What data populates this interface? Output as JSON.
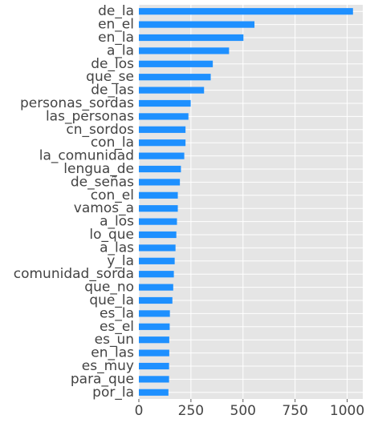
{
  "chart_data": {
    "type": "bar",
    "orientation": "horizontal",
    "categories": [
      "de_la",
      "en_el",
      "en_la",
      "a_la",
      "de_los",
      "que_se",
      "de_las",
      "personas_sordas",
      "las_personas",
      "cn_sordos",
      "con_la",
      "la_comunidad",
      "lengua_de",
      "de_señas",
      "con_el",
      "vamos_a",
      "a_los",
      "lo_que",
      "a_las",
      "y_la",
      "comunidad_sorda",
      "que_no",
      "que_la",
      "es_la",
      "es_el",
      "es_un",
      "en_las",
      "es_muy",
      "para_que",
      "por_la"
    ],
    "values": [
      1028,
      555,
      502,
      433,
      355,
      345,
      313,
      249,
      238,
      224,
      224,
      218,
      202,
      197,
      187,
      187,
      183,
      180,
      176,
      172,
      168,
      165,
      161,
      149,
      148,
      146,
      146,
      145,
      145,
      142
    ],
    "xlim": [
      0,
      1075
    ],
    "xticks": [
      0,
      250,
      500,
      750,
      1000
    ],
    "xtick_labels": [
      "0",
      "250",
      "500",
      "750",
      "1000"
    ],
    "title": "",
    "xlabel": "",
    "ylabel": "",
    "grid": true,
    "legend": "none",
    "colors": {
      "bar": "#1e90ff",
      "plot_background": "#e5e5e5",
      "grid": "#ffffff",
      "tick_text": "#444444"
    }
  }
}
